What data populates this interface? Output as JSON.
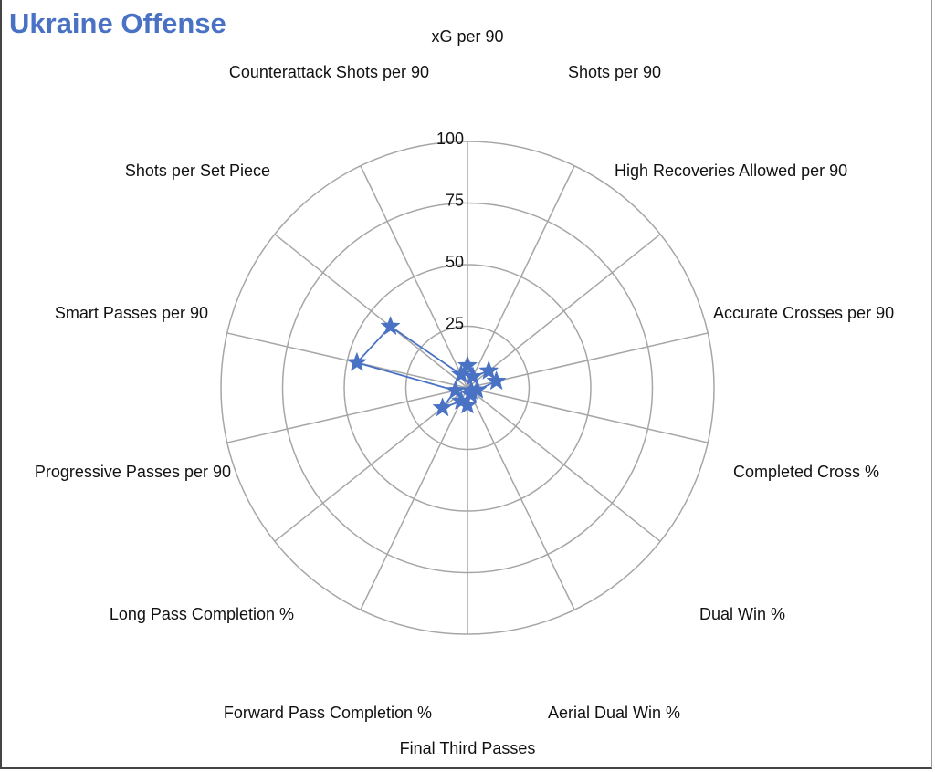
{
  "chart_data": {
    "type": "radar",
    "title": "Ukraine Offense",
    "rmax": 100,
    "ticks": [
      "25",
      "50",
      "75",
      "100"
    ],
    "tick_values": [
      25,
      50,
      75,
      100
    ],
    "grid": true,
    "categories": [
      "xG per 90",
      "Shots per 90",
      "High Recoveries Allowed per 90",
      "Accurate Crosses per 90",
      "Completed Cross %",
      "Dual Win %",
      "Aerial Dual Win %",
      "Final Third Passes",
      "Forward Pass Completion %",
      "Long Pass Completion %",
      "Progressive Passes per 90",
      "Smart Passes per 90",
      "Shots per Set Piece",
      "Counterattack Shots per 90"
    ],
    "series": [
      {
        "color": "#4a72c4",
        "marker": "star",
        "values": [
          9,
          5,
          11,
          12,
          4,
          2,
          3,
          7,
          6,
          13,
          5,
          46,
          40,
          6
        ]
      }
    ]
  }
}
